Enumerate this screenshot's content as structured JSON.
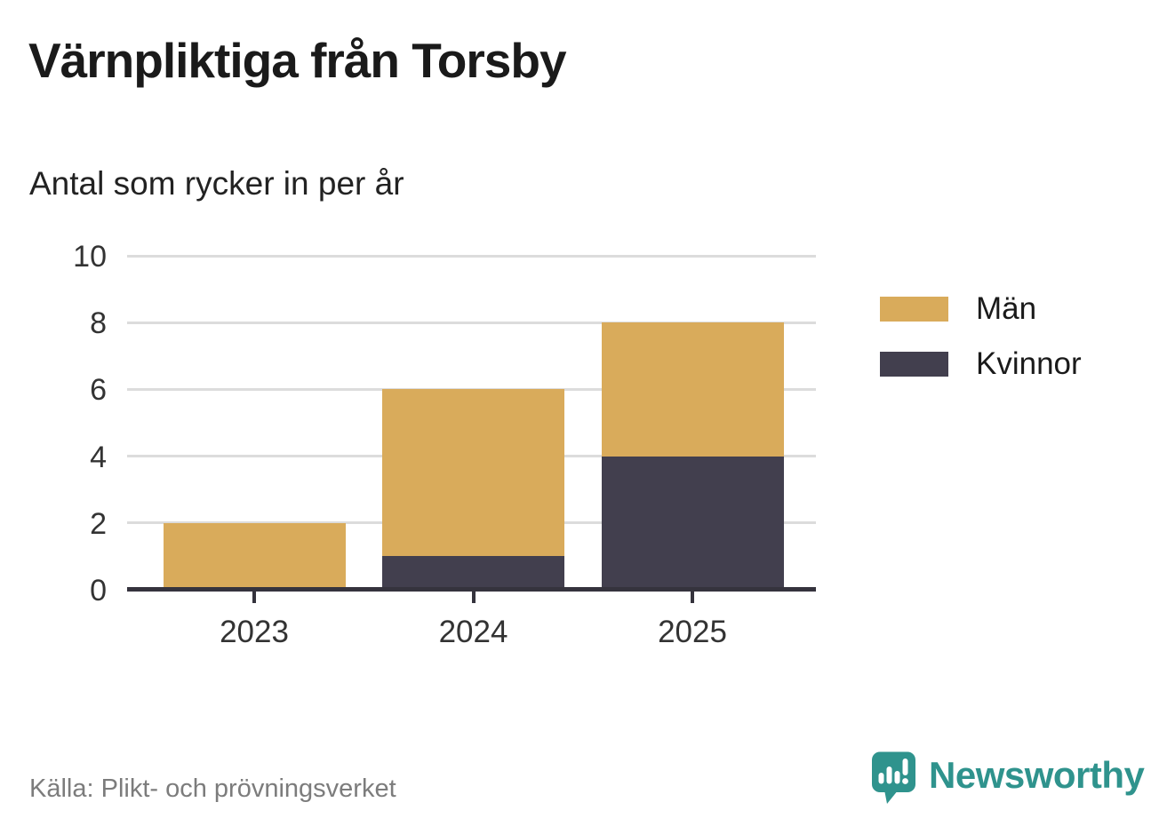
{
  "header": {
    "title": "Värnpliktiga från Torsby",
    "subtitle": "Antal som rycker in per år"
  },
  "chart_data": {
    "type": "bar",
    "stacked": true,
    "title": "Värnpliktiga från Torsby",
    "subtitle": "Antal som rycker in per år",
    "categories": [
      "2023",
      "2024",
      "2025"
    ],
    "series": [
      {
        "name": "Kvinnor",
        "color": "#423f4e",
        "values": [
          0,
          1,
          4
        ]
      },
      {
        "name": "Män",
        "color": "#d9ab5b",
        "values": [
          2,
          5,
          4
        ]
      }
    ],
    "totals": [
      2,
      6,
      8
    ],
    "xlabel": "",
    "ylabel": "",
    "ylim": [
      0,
      10
    ],
    "y_ticks": [
      0,
      2,
      4,
      6,
      8,
      10
    ],
    "grid": true,
    "legend_position": "right",
    "legend_order": [
      "Män",
      "Kvinnor"
    ]
  },
  "footer": {
    "source": "Källa: Plikt- och prövningsverket",
    "brand": "Newsworthy"
  },
  "colors": {
    "men": "#d9ab5b",
    "women": "#423f4e",
    "grid": "#dcdcdc",
    "axis": "#35333d",
    "text": "#1a1a1a",
    "tick_text": "#333333",
    "source_text": "#7c7c7c",
    "brand_teal": "#2f938d"
  }
}
